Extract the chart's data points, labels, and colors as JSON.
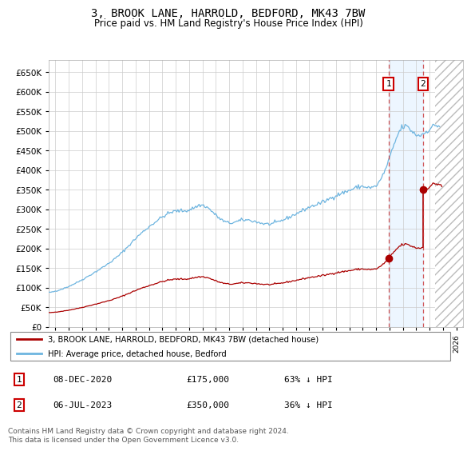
{
  "title": "3, BROOK LANE, HARROLD, BEDFORD, MK43 7BW",
  "subtitle": "Price paid vs. HM Land Registry's House Price Index (HPI)",
  "hpi_color": "#6eb5e0",
  "price_color": "#aa0000",
  "dashed_color": "#cc3333",
  "background_color": "#ffffff",
  "grid_color": "#cccccc",
  "ylim": [
    0,
    680000
  ],
  "yticks": [
    0,
    50000,
    100000,
    150000,
    200000,
    250000,
    300000,
    350000,
    400000,
    450000,
    500000,
    550000,
    600000,
    650000
  ],
  "ytick_labels": [
    "£0",
    "£50K",
    "£100K",
    "£150K",
    "£200K",
    "£250K",
    "£300K",
    "£350K",
    "£400K",
    "£450K",
    "£500K",
    "£550K",
    "£600K",
    "£650K"
  ],
  "xlim_start": 1995.5,
  "xlim_end": 2026.5,
  "transaction1_date": 2020.92,
  "transaction1_price": 175000,
  "transaction1_label": "1",
  "transaction2_date": 2023.5,
  "transaction2_price": 350000,
  "transaction2_label": "2",
  "legend_line1": "3, BROOK LANE, HARROLD, BEDFORD, MK43 7BW (detached house)",
  "legend_line2": "HPI: Average price, detached house, Bedford",
  "table_row1": [
    "1",
    "08-DEC-2020",
    "£175,000",
    "63% ↓ HPI"
  ],
  "table_row2": [
    "2",
    "06-JUL-2023",
    "£350,000",
    "36% ↓ HPI"
  ],
  "footer": "Contains HM Land Registry data © Crown copyright and database right 2024.\nThis data is licensed under the Open Government Licence v3.0.",
  "hatch_start": 2024.42
}
